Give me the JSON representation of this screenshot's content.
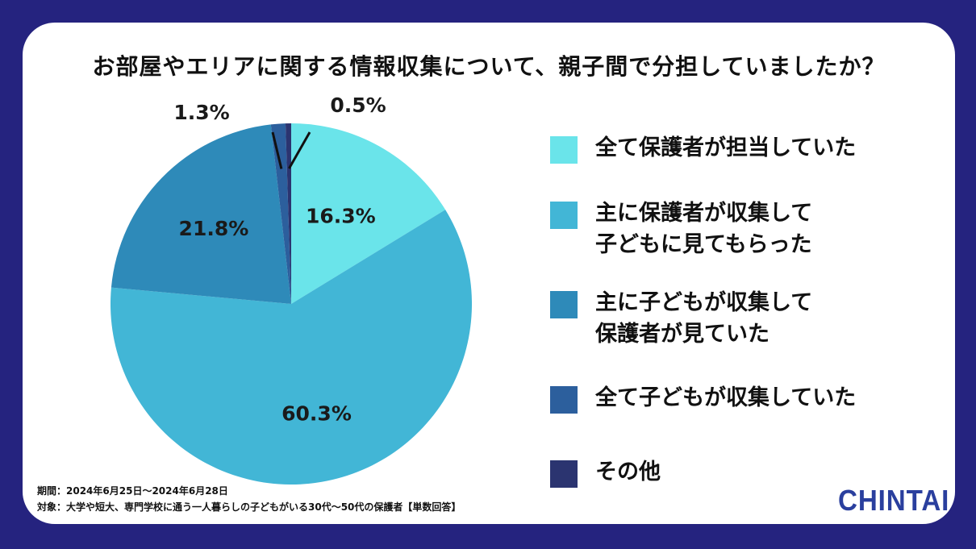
{
  "colors": {
    "background": "#25237f",
    "card": "#ffffff",
    "slices": [
      "#6ae4ea",
      "#42b6d6",
      "#2e8ab9",
      "#2c5f9d",
      "#2b3470"
    ]
  },
  "chart_data": {
    "type": "pie",
    "title": "お部屋やエリアに関する情報収集について、親子間で分担していましたか？",
    "categories": [
      "全て保護者が担当していた",
      "主に保護者が収集して\n子どもに見てもらった",
      "主に子どもが収集して\n保護者が見ていた",
      "全て子どもが収集していた",
      "その他"
    ],
    "values": [
      16.3,
      60.3,
      21.8,
      1.3,
      0.5
    ],
    "labels": [
      "16.3%",
      "60.3%",
      "21.8%",
      "1.3%",
      "0.5%"
    ],
    "legend_position": "right",
    "start_angle_deg": 0,
    "direction": "clockwise"
  },
  "footnotes": {
    "period": "期間：2024年6月25日～2024年6月28日",
    "target": "対象：大学や短大、専門学校に通う一人暮らしの子どもがいる30代～50代の保護者【単数回答】"
  },
  "logo": {
    "text": "CHINTAI"
  }
}
